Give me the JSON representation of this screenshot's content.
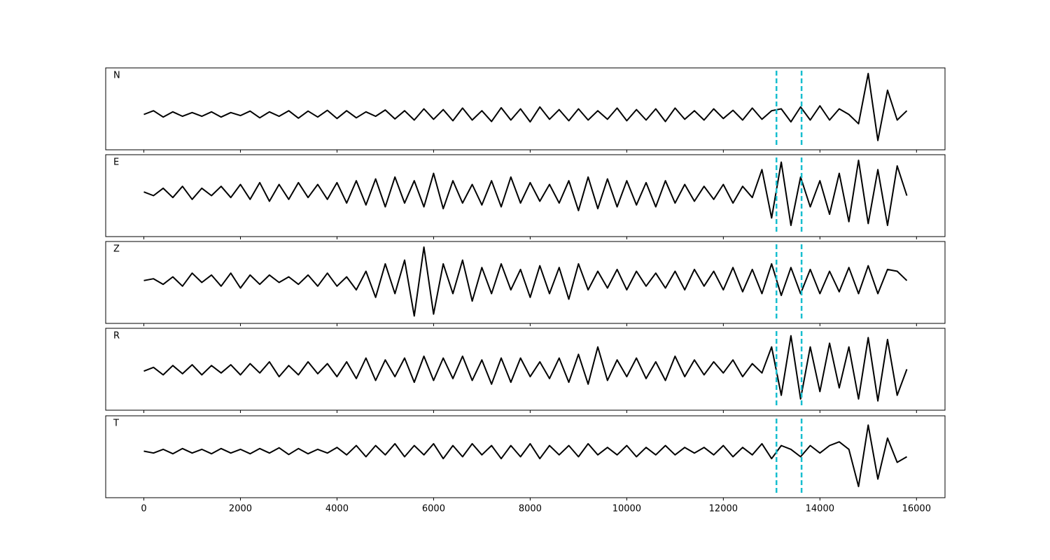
{
  "chart_data": {
    "type": "line",
    "subplots": true,
    "x": [
      0,
      200,
      400,
      600,
      800,
      1000,
      1200,
      1400,
      1600,
      1800,
      2000,
      2200,
      2400,
      2600,
      2800,
      3000,
      3200,
      3400,
      3600,
      3800,
      4000,
      4200,
      4400,
      4600,
      4800,
      5000,
      5200,
      5400,
      5600,
      5800,
      6000,
      6200,
      6400,
      6600,
      6800,
      7000,
      7200,
      7400,
      7600,
      7800,
      8000,
      8200,
      8400,
      8600,
      8800,
      9000,
      9200,
      9400,
      9600,
      9800,
      10000,
      10200,
      10400,
      10600,
      10800,
      11000,
      11200,
      11400,
      11600,
      11800,
      12000,
      12200,
      12400,
      12600,
      12800,
      13000,
      13200,
      13400,
      13600,
      13800,
      14000,
      14200,
      14400,
      14600,
      14800,
      15000,
      15200,
      15400,
      15600,
      15800
    ],
    "series": [
      {
        "name": "N",
        "color": "#000000",
        "values": [
          -0.15,
          -0.05,
          -0.22,
          -0.08,
          -0.2,
          -0.1,
          -0.2,
          -0.08,
          -0.22,
          -0.1,
          -0.18,
          -0.06,
          -0.24,
          -0.08,
          -0.2,
          -0.05,
          -0.25,
          -0.06,
          -0.22,
          -0.04,
          -0.26,
          -0.05,
          -0.24,
          -0.08,
          -0.2,
          -0.03,
          -0.27,
          -0.05,
          -0.3,
          0.0,
          -0.28,
          -0.02,
          -0.32,
          0.02,
          -0.3,
          -0.05,
          -0.34,
          0.03,
          -0.3,
          0.0,
          -0.35,
          0.05,
          -0.28,
          -0.02,
          -0.32,
          0.0,
          -0.3,
          -0.05,
          -0.28,
          0.02,
          -0.32,
          -0.02,
          -0.3,
          0.0,
          -0.34,
          0.02,
          -0.28,
          -0.05,
          -0.3,
          0.0,
          -0.26,
          -0.04,
          -0.3,
          0.02,
          -0.28,
          -0.05,
          0.0,
          -0.35,
          0.05,
          -0.3,
          0.08,
          -0.3,
          0.0,
          -0.15,
          -0.4,
          0.95,
          -0.85,
          0.5,
          -0.3,
          -0.05
        ]
      },
      {
        "name": "E",
        "color": "#000000",
        "values": [
          0.1,
          0.0,
          0.2,
          -0.05,
          0.25,
          -0.1,
          0.2,
          0.0,
          0.25,
          -0.05,
          0.3,
          -0.1,
          0.35,
          -0.15,
          0.3,
          -0.1,
          0.35,
          -0.05,
          0.3,
          -0.1,
          0.35,
          -0.2,
          0.4,
          -0.25,
          0.45,
          -0.3,
          0.5,
          -0.2,
          0.4,
          -0.3,
          0.6,
          -0.35,
          0.4,
          -0.2,
          0.3,
          -0.25,
          0.4,
          -0.3,
          0.5,
          -0.2,
          0.35,
          -0.15,
          0.3,
          -0.2,
          0.4,
          -0.4,
          0.5,
          -0.35,
          0.45,
          -0.3,
          0.4,
          -0.25,
          0.35,
          -0.3,
          0.4,
          -0.2,
          0.3,
          -0.15,
          0.25,
          -0.1,
          0.3,
          -0.2,
          0.25,
          -0.05,
          0.7,
          -0.6,
          0.9,
          -0.8,
          0.5,
          -0.3,
          0.4,
          -0.5,
          0.6,
          -0.7,
          0.95,
          -0.75,
          0.7,
          -0.8,
          0.8,
          0.0
        ]
      },
      {
        "name": "Z",
        "color": "#000000",
        "values": [
          0.05,
          0.1,
          -0.05,
          0.15,
          -0.1,
          0.25,
          0.0,
          0.2,
          -0.1,
          0.25,
          -0.15,
          0.2,
          -0.05,
          0.2,
          0.0,
          0.15,
          -0.05,
          0.2,
          -0.1,
          0.25,
          -0.1,
          0.15,
          -0.2,
          0.3,
          -0.4,
          0.5,
          -0.3,
          0.6,
          -0.9,
          0.95,
          -0.85,
          0.5,
          -0.3,
          0.6,
          -0.5,
          0.4,
          -0.3,
          0.5,
          -0.2,
          0.35,
          -0.4,
          0.45,
          -0.3,
          0.4,
          -0.45,
          0.5,
          -0.2,
          0.3,
          -0.15,
          0.35,
          -0.2,
          0.3,
          -0.1,
          0.25,
          -0.15,
          0.3,
          -0.2,
          0.35,
          -0.1,
          0.3,
          -0.2,
          0.4,
          -0.25,
          0.35,
          -0.3,
          0.5,
          -0.35,
          0.4,
          -0.3,
          0.35,
          -0.3,
          0.3,
          -0.25,
          0.4,
          -0.3,
          0.45,
          -0.3,
          0.35,
          0.3,
          0.05
        ]
      },
      {
        "name": "R",
        "color": "#000000",
        "values": [
          -0.05,
          0.05,
          -0.15,
          0.1,
          -0.12,
          0.12,
          -0.15,
          0.1,
          -0.1,
          0.12,
          -0.15,
          0.15,
          -0.1,
          0.2,
          -0.2,
          0.1,
          -0.15,
          0.2,
          -0.12,
          0.15,
          -0.2,
          0.2,
          -0.25,
          0.3,
          -0.3,
          0.25,
          -0.2,
          0.3,
          -0.35,
          0.35,
          -0.3,
          0.3,
          -0.25,
          0.35,
          -0.3,
          0.25,
          -0.4,
          0.3,
          -0.35,
          0.3,
          -0.2,
          0.2,
          -0.25,
          0.3,
          -0.35,
          0.4,
          -0.4,
          0.6,
          -0.3,
          0.25,
          -0.2,
          0.3,
          -0.25,
          0.2,
          -0.3,
          0.35,
          -0.2,
          0.25,
          -0.15,
          0.2,
          -0.1,
          0.25,
          -0.2,
          0.15,
          -0.1,
          0.6,
          -0.7,
          0.9,
          -0.8,
          0.6,
          -0.6,
          0.7,
          -0.5,
          0.6,
          -0.8,
          0.85,
          -0.85,
          0.8,
          -0.7,
          0.0
        ]
      },
      {
        "name": "T",
        "color": "#000000",
        "values": [
          0.15,
          0.1,
          0.2,
          0.08,
          0.22,
          0.1,
          0.2,
          0.08,
          0.22,
          0.1,
          0.2,
          0.08,
          0.22,
          0.1,
          0.24,
          0.06,
          0.22,
          0.08,
          0.2,
          0.1,
          0.25,
          0.05,
          0.3,
          0.0,
          0.3,
          0.05,
          0.35,
          0.0,
          0.3,
          0.05,
          0.35,
          -0.05,
          0.3,
          0.0,
          0.35,
          0.05,
          0.3,
          -0.05,
          0.3,
          0.0,
          0.35,
          -0.05,
          0.3,
          0.05,
          0.3,
          0.0,
          0.35,
          0.05,
          0.25,
          0.05,
          0.3,
          0.0,
          0.25,
          0.05,
          0.3,
          0.05,
          0.25,
          0.1,
          0.25,
          0.05,
          0.3,
          0.0,
          0.25,
          0.05,
          0.35,
          -0.05,
          0.3,
          0.2,
          0.0,
          0.3,
          0.1,
          0.3,
          0.4,
          0.2,
          -0.8,
          0.85,
          -0.6,
          0.5,
          -0.15,
          0.0
        ]
      }
    ],
    "xlim": [
      -790,
      16590
    ],
    "xticks": [
      0,
      2000,
      4000,
      6000,
      8000,
      10000,
      12000,
      14000,
      16000
    ],
    "ylim": [
      -1.1,
      1.1
    ],
    "vlines": [
      13100,
      13620
    ],
    "vline_color": "#17becf",
    "vline_style": "dashed"
  }
}
